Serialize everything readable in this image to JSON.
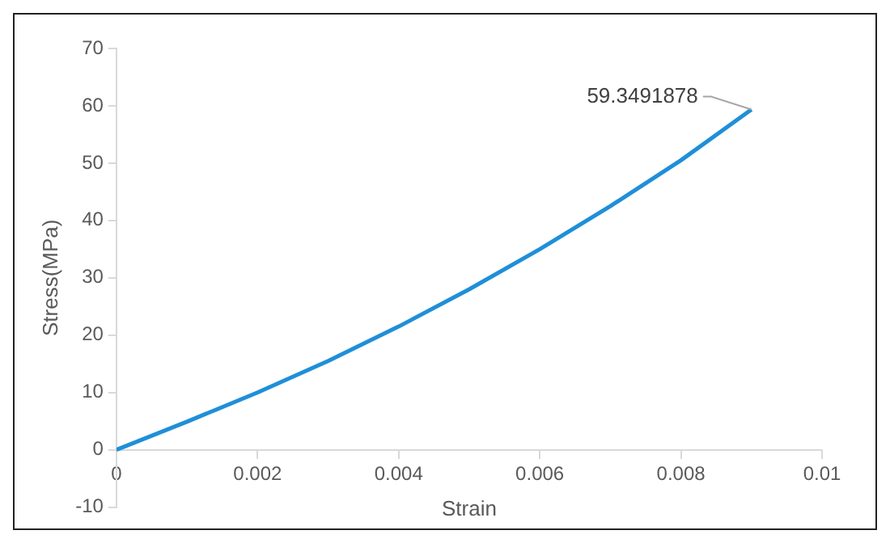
{
  "chart_data": {
    "type": "line",
    "xlabel": "Strain",
    "ylabel": "Stress(MPa)",
    "x": [
      0,
      0.001,
      0.002,
      0.003,
      0.004,
      0.005,
      0.006,
      0.007,
      0.008,
      0.009
    ],
    "series": [
      {
        "color": "#1f8fd8",
        "values": [
          0,
          4.9,
          10,
          15.5,
          21.5,
          28,
          35,
          42.5,
          50.5,
          59.3491878
        ]
      }
    ],
    "xlim": [
      0,
      0.01
    ],
    "xticks": [
      0,
      0.002,
      0.004,
      0.006,
      0.008,
      0.01
    ],
    "ylim": [
      -10,
      70
    ],
    "yticks": [
      -10,
      0,
      10,
      20,
      30,
      40,
      50,
      60,
      70
    ],
    "grid": false,
    "legend": false,
    "marker": "none",
    "line_style": "solid",
    "annotations": [
      {
        "text": "59.3491878",
        "x": 0.009,
        "y": 59.3491878
      }
    ]
  }
}
